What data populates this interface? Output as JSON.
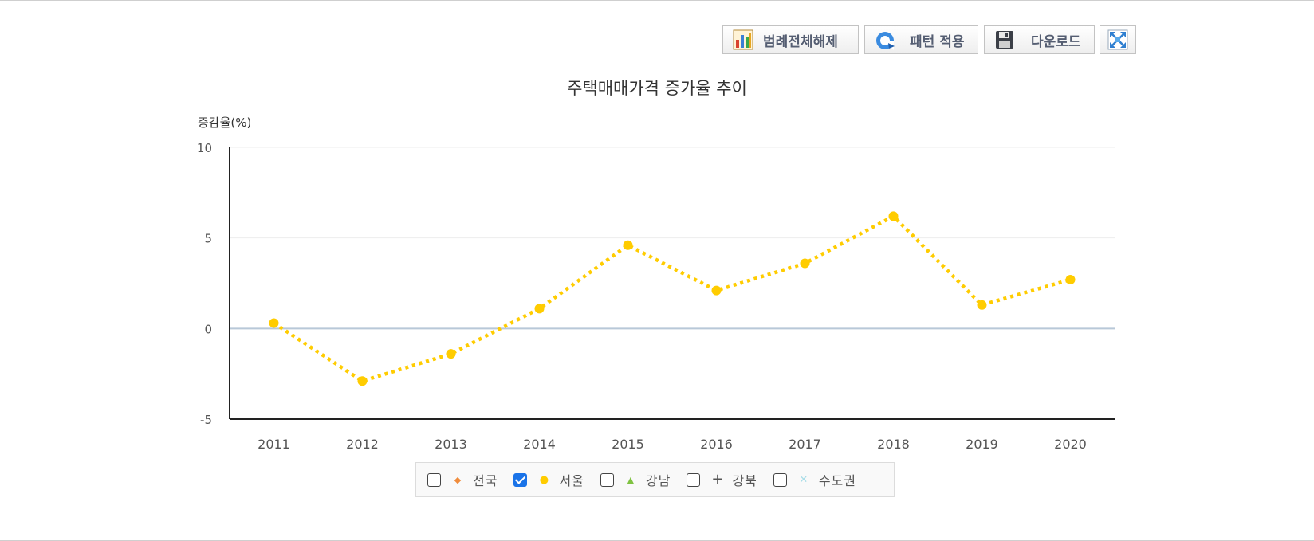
{
  "toolbar": {
    "legend_off_label": "범례전체해제",
    "pattern_label": "패턴 적용",
    "download_label": "다운로드"
  },
  "legend": [
    {
      "label": "전국",
      "checked": false,
      "marker": "diamond",
      "color": "#f08c3c"
    },
    {
      "label": "서울",
      "checked": true,
      "marker": "circle",
      "color": "#ffcc00"
    },
    {
      "label": "강남",
      "checked": false,
      "marker": "triangle",
      "color": "#7fc241"
    },
    {
      "label": "강북",
      "checked": false,
      "marker": "plus",
      "color": "#555555"
    },
    {
      "label": "수도권",
      "checked": false,
      "marker": "cross",
      "color": "#a8dde8"
    }
  ],
  "chart_data": {
    "type": "line",
    "title": "주택매매가격 증가율 추이",
    "ylabel": "증감율(%)",
    "xlabel": "",
    "ylim": [
      -5,
      10
    ],
    "yticks": [
      -5,
      0,
      5,
      10
    ],
    "categories": [
      "2011",
      "2012",
      "2013",
      "2014",
      "2015",
      "2016",
      "2017",
      "2018",
      "2019",
      "2020"
    ],
    "grid": true,
    "legend_position": "bottom",
    "series": [
      {
        "name": "서울",
        "color": "#ffcc00",
        "style": "dotted",
        "values": [
          0.3,
          -2.9,
          -1.4,
          1.1,
          4.6,
          2.1,
          3.6,
          6.2,
          1.3,
          2.7
        ]
      }
    ]
  }
}
